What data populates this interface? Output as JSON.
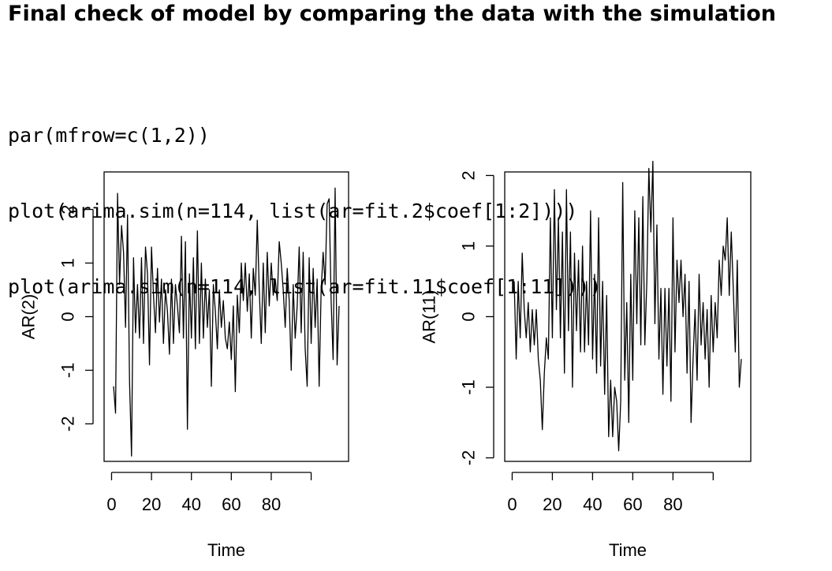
{
  "slide": {
    "title": "Final check of model by comparing the data with the simulation",
    "code": [
      "par(mfrow=c(1,2))",
      "plot(arima.sim(n=114, list(ar=fit.2$coef[1:2])))",
      "plot(arima.sim(n=114, list(ar=fit.11$coef[1:11])))"
    ]
  },
  "chart_data": [
    {
      "type": "line",
      "title": "",
      "xlabel": "Time",
      "ylabel": "AR(2)",
      "xlim": [
        1,
        114
      ],
      "ylim": [
        -2.7,
        2.7
      ],
      "x_ticks": [
        0,
        20,
        40,
        60,
        80,
        100
      ],
      "x_tick_labels": [
        "0",
        "20",
        "40",
        "60",
        "80",
        ""
      ],
      "y_ticks": [
        -2,
        -1,
        0,
        1,
        2
      ],
      "y_tick_labels": [
        "-2",
        "-1",
        "0",
        "1",
        "2"
      ],
      "grid": false,
      "series": [
        {
          "values": [
            -1.3,
            -1.8,
            2.3,
            0.6,
            1.7,
            1.2,
            -0.2,
            1.9,
            -1.2,
            -2.6,
            1.1,
            -0.3,
            0.6,
            -0.4,
            1.1,
            -0.5,
            1.3,
            0.8,
            -0.9,
            1.3,
            0.4,
            -0.3,
            0.9,
            -0.1,
            0.7,
            -0.5,
            0.5,
            0.1,
            -0.7,
            0.7,
            -0.5,
            0.6,
            0.2,
            -0.3,
            1.5,
            -0.4,
            1.4,
            -2.1,
            0.8,
            -0.4,
            1.1,
            -0.6,
            1.6,
            -0.5,
            1.0,
            -0.4,
            0.7,
            -0.2,
            0.5,
            -1.3,
            0.6,
            0.1,
            -0.6,
            0.5,
            -0.2,
            0.3,
            -0.4,
            -0.6,
            -0.1,
            -0.8,
            0.2,
            -1.4,
            0.4,
            -0.3,
            1.0,
            0.3,
            1.0,
            0.1,
            0.8,
            -0.4,
            0.9,
            0.4,
            1.8,
            0.5,
            -0.5,
            1.0,
            -0.3,
            1.2,
            0.2,
            1.0,
            0.4,
            0.7,
            0.3,
            1.4,
            1.0,
            0.5,
            -0.2,
            0.9,
            0.3,
            -1.0,
            0.6,
            -0.4,
            0.2,
            1.3,
            -0.3,
            1.2,
            -0.6,
            -1.3,
            1.1,
            -0.5,
            0.9,
            -0.2,
            0.7,
            -1.3,
            0.5,
            1.2,
            0.6,
            2.1,
            2.2,
            0.3,
            -0.8,
            2.4,
            -0.9,
            0.2
          ]
        }
      ]
    },
    {
      "type": "line",
      "title": "",
      "xlabel": "Time",
      "ylabel": "AR(11)",
      "xlim": [
        1,
        114
      ],
      "ylim": [
        -2.05,
        2.05
      ],
      "x_ticks": [
        0,
        20,
        40,
        60,
        80,
        100
      ],
      "x_tick_labels": [
        "0",
        "20",
        "40",
        "60",
        "80",
        ""
      ],
      "y_ticks": [
        -2,
        -1,
        0,
        1,
        2
      ],
      "y_tick_labels": [
        "-2",
        "-1",
        "0",
        "1",
        "2"
      ],
      "grid": false,
      "series": [
        {
          "values": [
            0.5,
            -0.6,
            0.5,
            -0.3,
            0.9,
            0.1,
            -0.3,
            0.2,
            -0.5,
            0.1,
            -0.4,
            0.1,
            -0.6,
            -0.9,
            -1.6,
            -0.8,
            -0.3,
            -0.6,
            1.4,
            -0.3,
            1.8,
            0.1,
            1.4,
            -0.3,
            1.2,
            -0.8,
            1.8,
            -0.2,
            1.2,
            -1.0,
            0.9,
            -0.2,
            0.8,
            -0.5,
            1.0,
            -0.5,
            0.5,
            -0.4,
            1.5,
            -0.6,
            0.6,
            -0.8,
            1.4,
            -0.7,
            0.5,
            -1.1,
            0.3,
            -1.7,
            -0.9,
            -1.7,
            -1.0,
            -1.2,
            -1.9,
            -1.2,
            1.9,
            -0.9,
            0.2,
            -1.5,
            0.6,
            -0.9,
            1.5,
            -0.1,
            1.4,
            -0.4,
            1.7,
            -0.4,
            0.5,
            2.1,
            1.2,
            2.2,
            -0.1,
            1.3,
            -0.6,
            0.4,
            -1.1,
            0.4,
            -0.7,
            0.4,
            -1.2,
            1.4,
            -0.5,
            0.8,
            0.2,
            0.8,
            0.0,
            0.6,
            -0.8,
            0.5,
            -1.5,
            -0.6,
            0.1,
            -0.9,
            0.6,
            -0.4,
            0.2,
            -0.6,
            0.1,
            -1.0,
            0.3,
            -0.5,
            0.2,
            -0.3,
            0.8,
            0.3,
            1.0,
            0.8,
            1.4,
            0.3,
            1.2,
            0.4,
            -0.5,
            0.8,
            -1.0,
            -0.6
          ]
        }
      ]
    }
  ]
}
